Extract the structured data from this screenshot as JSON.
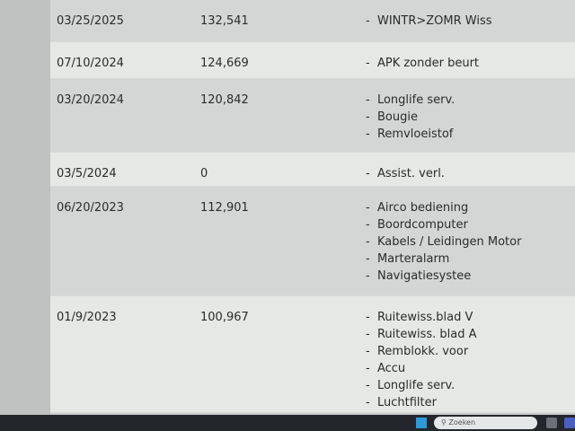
{
  "rows": [
    {
      "date": "03/25/2025",
      "km": "132,541",
      "items": [
        "WINTR>ZOMR Wiss"
      ]
    },
    {
      "date": "07/10/2024",
      "km": "124,669",
      "items": [
        "APK zonder beurt"
      ]
    },
    {
      "date": "03/20/2024",
      "km": "120,842",
      "items": [
        "Longlife serv.",
        "Bougie",
        "Remvloeistof"
      ]
    },
    {
      "date": "03/5/2024",
      "km": "0",
      "items": [
        "Assist. verl."
      ]
    },
    {
      "date": "06/20/2023",
      "km": "112,901",
      "items": [
        "Airco bediening",
        "Boordcomputer",
        "Kabels / Leidingen Motor",
        "Marteralarm",
        "Navigatiesystee"
      ]
    },
    {
      "date": "01/9/2023",
      "km": "100,967",
      "items": [
        "Ruitewiss.blad V",
        "Ruitewiss. blad A",
        "Remblokk. voor",
        "Accu",
        "Longlife serv.",
        "Luchtfilter"
      ]
    }
  ],
  "taskbar": {
    "search_placeholder": "Zoeken",
    "search_icon": "search-icon",
    "start_icon": "windows-icon"
  }
}
